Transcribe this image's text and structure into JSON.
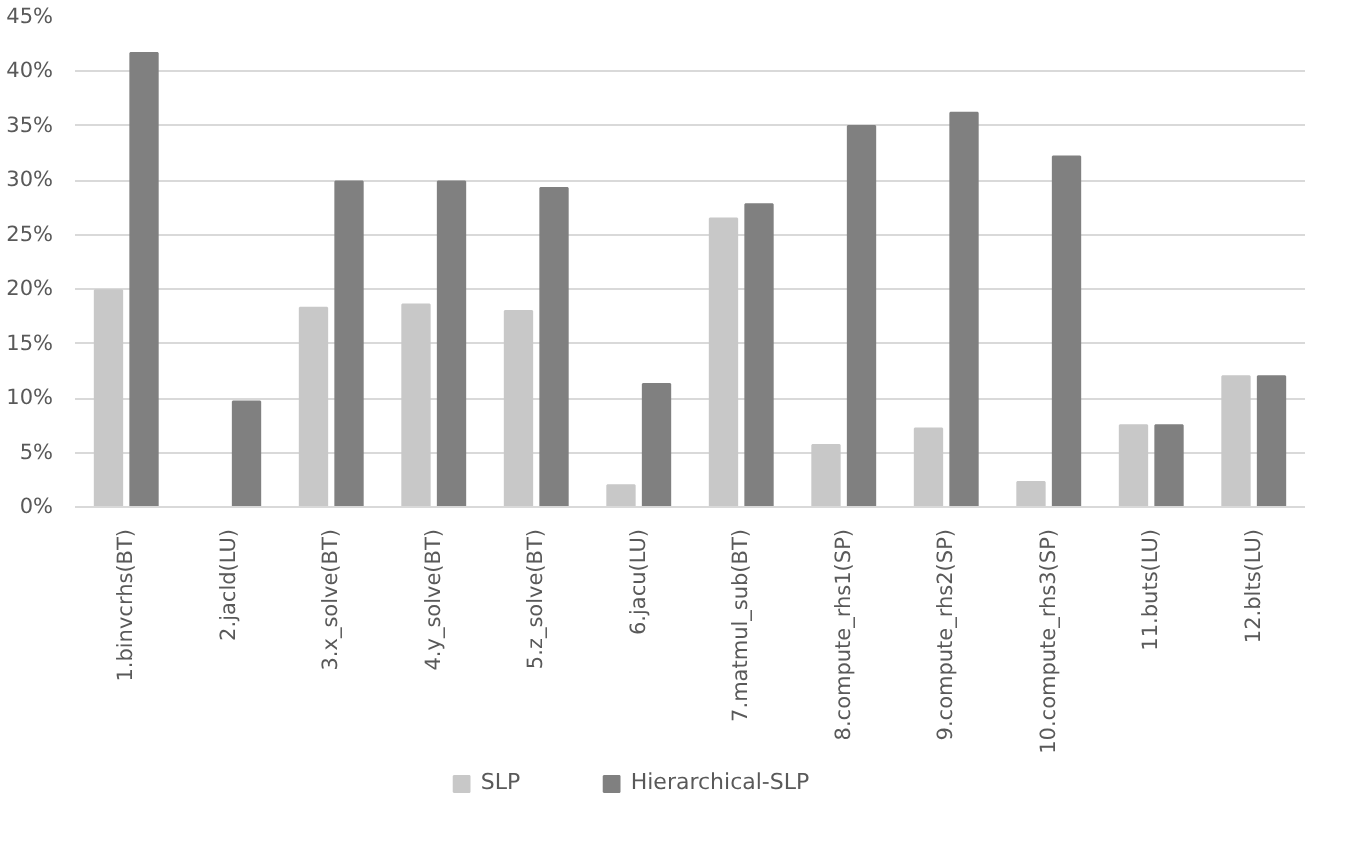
{
  "chart_data": {
    "type": "bar",
    "categories": [
      "1.binvcrhs(BT)",
      "2.jacld(LU)",
      "3.x_solve(BT)",
      "4.y_solve(BT)",
      "5.z_solve(BT)",
      "6.jacu(LU)",
      "7.matmul_sub(BT)",
      "8.compute_rhs1(SP)",
      "9.compute_rhs2(SP)",
      "10.compute_rhs3(SP)",
      "11.buts(LU)",
      "12.blts(LU)"
    ],
    "series": [
      {
        "name": "SLP",
        "color": "#c8c8c8",
        "values": [
          19.9,
          0,
          18.3,
          18.6,
          18.0,
          2.0,
          26.5,
          5.7,
          7.2,
          2.3,
          7.5,
          12.0
        ]
      },
      {
        "name": "Hierarchical-SLP",
        "color": "#808080",
        "values": [
          41.7,
          9.7,
          29.9,
          29.9,
          29.3,
          11.3,
          27.8,
          35.0,
          36.2,
          32.2,
          7.5,
          12.0
        ]
      }
    ],
    "ylim": [
      0,
      45
    ],
    "yticks": [
      {
        "value": 0,
        "label": "0%"
      },
      {
        "value": 5,
        "label": "5%"
      },
      {
        "value": 10,
        "label": "10%"
      },
      {
        "value": 15,
        "label": "15%"
      },
      {
        "value": 20,
        "label": "20%"
      },
      {
        "value": 25,
        "label": "25%"
      },
      {
        "value": 30,
        "label": "30%"
      },
      {
        "value": 35,
        "label": "35%"
      },
      {
        "value": 40,
        "label": "40%"
      },
      {
        "value": 45,
        "label": "45%"
      }
    ],
    "grid": "y",
    "legend": "bottom"
  }
}
